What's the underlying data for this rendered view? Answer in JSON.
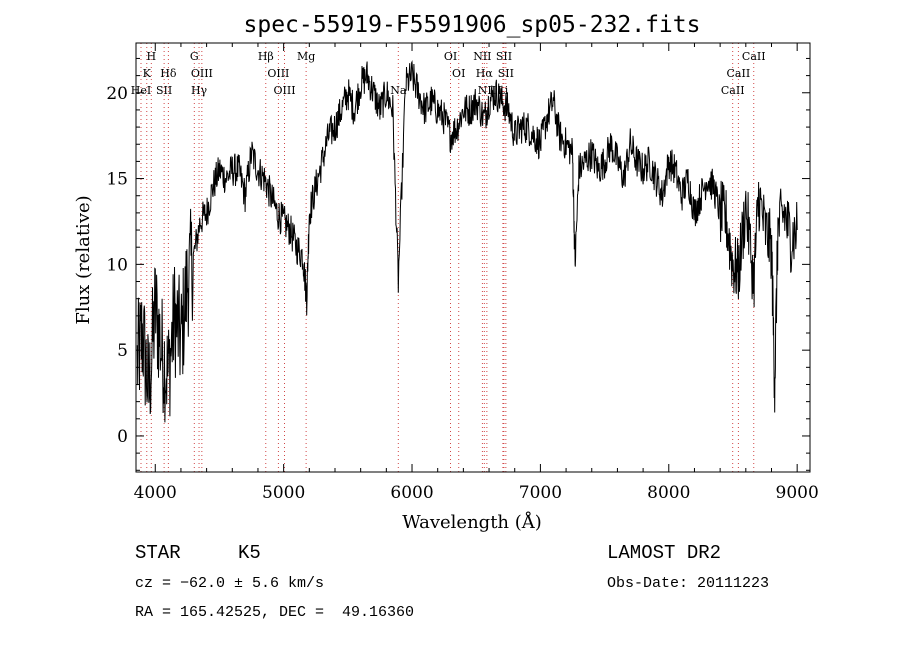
{
  "chart_data": {
    "type": "line",
    "title": "spec-55919-F5591906_sp05-232.fits",
    "xlabel": "Wavelength (Å)",
    "ylabel": "Flux (relative)",
    "xlim": [
      3850,
      9100
    ],
    "ylim": [
      -2.1,
      22.9
    ],
    "xticks": [
      4000,
      5000,
      6000,
      7000,
      8000,
      9000
    ],
    "yticks": [
      0,
      5,
      10,
      15,
      20
    ],
    "grid": false,
    "series": [
      {
        "x": [
          3860,
          3900,
          3950,
          4000,
          4050,
          4100,
          4150,
          4200,
          4250,
          4300,
          4350,
          4400,
          4450,
          4500,
          4550,
          4600,
          4650,
          4700,
          4750,
          4800,
          4850,
          4900,
          4950,
          5000,
          5050,
          5100,
          5150,
          5180,
          5200,
          5250,
          5300,
          5350,
          5400,
          5450,
          5500,
          5550,
          5600,
          5650,
          5700,
          5750,
          5800,
          5850,
          5893,
          5950,
          6000,
          6050,
          6100,
          6150,
          6200,
          6250,
          6300,
          6350,
          6400,
          6450,
          6500,
          6563,
          6600,
          6650,
          6700,
          6750,
          6800,
          6850,
          6900,
          6950,
          7000,
          7050,
          7100,
          7150,
          7200,
          7250,
          7270,
          7300,
          7350,
          7400,
          7450,
          7500,
          7550,
          7600,
          7650,
          7700,
          7750,
          7800,
          7850,
          7900,
          7950,
          8000,
          8050,
          8100,
          8150,
          8200,
          8250,
          8300,
          8350,
          8400,
          8450,
          8498,
          8542,
          8600,
          8662,
          8700,
          8750,
          8800,
          8825,
          8850,
          8900,
          8950,
          9000
        ],
        "values": [
          4.2,
          6.0,
          2.5,
          7.5,
          5.0,
          3.5,
          7.0,
          5.5,
          9.0,
          10.5,
          12.5,
          13.0,
          14.5,
          15.5,
          15.0,
          15.5,
          15.5,
          14.0,
          16.5,
          15.5,
          15.0,
          14.0,
          13.0,
          12.5,
          12.0,
          11.0,
          10.5,
          8.0,
          13.0,
          14.5,
          16.0,
          17.5,
          18.0,
          19.0,
          20.0,
          19.0,
          20.5,
          21.0,
          20.0,
          19.0,
          20.0,
          19.0,
          9.0,
          20.5,
          21.0,
          20.0,
          19.0,
          19.5,
          19.0,
          18.5,
          17.5,
          18.0,
          19.0,
          19.0,
          19.5,
          18.5,
          19.5,
          20.0,
          19.5,
          19.0,
          17.5,
          18.0,
          18.0,
          17.5,
          17.0,
          18.5,
          19.5,
          17.5,
          17.0,
          16.5,
          10.0,
          15.5,
          16.0,
          16.5,
          15.5,
          16.0,
          17.0,
          16.0,
          15.0,
          17.0,
          16.0,
          15.5,
          16.0,
          15.0,
          14.0,
          16.0,
          15.5,
          14.0,
          15.0,
          13.0,
          14.0,
          15.0,
          14.5,
          13.0,
          12.5,
          10.0,
          9.5,
          13.5,
          9.0,
          14.0,
          12.0,
          11.0,
          3.0,
          12.0,
          13.0,
          11.5,
          12.0
        ]
      }
    ],
    "lines": [
      {
        "x": 3934,
        "label": "K",
        "row": 1
      },
      {
        "x": 3969,
        "label": "H",
        "row": 0
      },
      {
        "x": 3889,
        "label": "HeI",
        "row": 2
      },
      {
        "x": 4102,
        "label": "Hδ",
        "row": 1
      },
      {
        "x": 4069,
        "label": "SII",
        "row": 2
      },
      {
        "x": 4304,
        "label": "G",
        "row": 0
      },
      {
        "x": 4363,
        "label": "OIII",
        "row": 1
      },
      {
        "x": 4341,
        "label": "Hγ",
        "row": 2
      },
      {
        "x": 4861,
        "label": "Hβ",
        "row": 0
      },
      {
        "x": 4959,
        "label": "OIII",
        "row": 1
      },
      {
        "x": 5007,
        "label": "OIII",
        "row": 2
      },
      {
        "x": 5175,
        "label": "Mg",
        "row": 0
      },
      {
        "x": 5893,
        "label": "Na",
        "row": 2
      },
      {
        "x": 6300,
        "label": "OI",
        "row": 0
      },
      {
        "x": 6364,
        "label": "OI",
        "row": 1
      },
      {
        "x": 6548,
        "label": "NII",
        "row": 0
      },
      {
        "x": 6563,
        "label": "Hα",
        "row": 1
      },
      {
        "x": 6583,
        "label": "NII",
        "row": 2
      },
      {
        "x": 6716,
        "label": "SII",
        "row": 0
      },
      {
        "x": 6731,
        "label": "SII",
        "row": 1
      },
      {
        "x": 6708,
        "label": "Li",
        "row": 2
      },
      {
        "x": 8498,
        "label": "CaII",
        "row": 2
      },
      {
        "x": 8542,
        "label": "CaII",
        "row": 1
      },
      {
        "x": 8662,
        "label": "CaII",
        "row": 0
      }
    ]
  },
  "info": {
    "class_label": "STAR",
    "subclass": "K5",
    "survey": "LAMOST DR2",
    "redshift": "cz = −62.0 ± 5.6 km/s",
    "obs_date": "Obs-Date: 20111223",
    "coords": "RA = 165.42525, DEC =  49.16360"
  }
}
